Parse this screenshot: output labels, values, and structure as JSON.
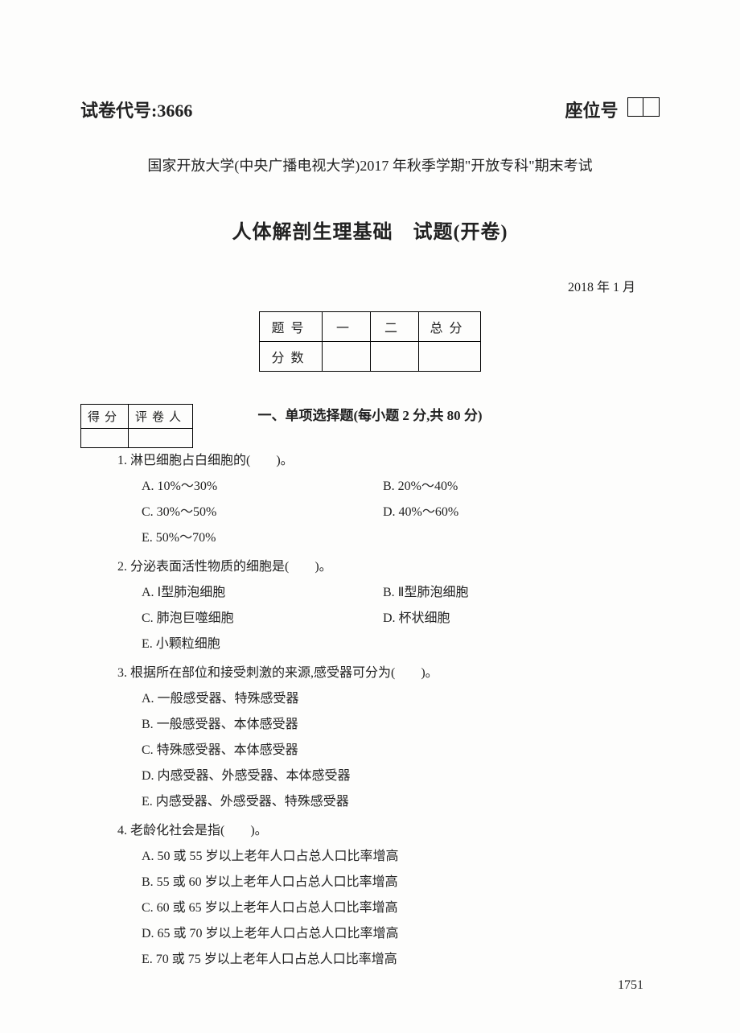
{
  "header": {
    "paper_code_label": "试卷代号:",
    "paper_code": "3666",
    "seat_label": "座位号"
  },
  "university_line": "国家开放大学(中央广播电视大学)2017 年秋季学期\"开放专科\"期末考试",
  "exam_title": "人体解剖生理基础　试题(开卷)",
  "date_line": "2018 年 1 月",
  "score_table": {
    "row1": [
      "题号",
      "一",
      "二",
      "总分"
    ],
    "row2_label": "分数"
  },
  "grader_table": {
    "score_label": "得分",
    "grader_label": "评卷人"
  },
  "section_title": "一、单项选择题(每小题 2 分,共 80 分)",
  "questions": [
    {
      "num": "1.",
      "text": "淋巴细胞占白细胞的(　　)。",
      "layout": "two-col",
      "left": [
        "A. 10%～30%",
        "C. 30%～50%",
        "E. 50%～70%"
      ],
      "right": [
        "B. 20%～40%",
        "D. 40%～60%"
      ]
    },
    {
      "num": "2.",
      "text": "分泌表面活性物质的细胞是(　　)。",
      "layout": "two-col",
      "left": [
        "A. Ⅰ型肺泡细胞",
        "C. 肺泡巨噬细胞",
        "E. 小颗粒细胞"
      ],
      "right": [
        "B. Ⅱ型肺泡细胞",
        "D. 杯状细胞"
      ]
    },
    {
      "num": "3.",
      "text": "根据所在部位和接受刺激的来源,感受器可分为(　　)。",
      "layout": "single",
      "options": [
        "A. 一般感受器、特殊感受器",
        "B. 一般感受器、本体感受器",
        "C. 特殊感受器、本体感受器",
        "D. 内感受器、外感受器、本体感受器",
        "E. 内感受器、外感受器、特殊感受器"
      ]
    },
    {
      "num": "4.",
      "text": "老龄化社会是指(　　)。",
      "layout": "single",
      "options": [
        "A. 50 或 55 岁以上老年人口占总人口比率增高",
        "B. 55 或 60 岁以上老年人口占总人口比率增高",
        "C. 60 或 65 岁以上老年人口占总人口比率增高",
        "D. 65 或 70 岁以上老年人口占总人口比率增高",
        "E. 70 或 75 岁以上老年人口占总人口比率增高"
      ]
    }
  ],
  "page_number": "1751"
}
